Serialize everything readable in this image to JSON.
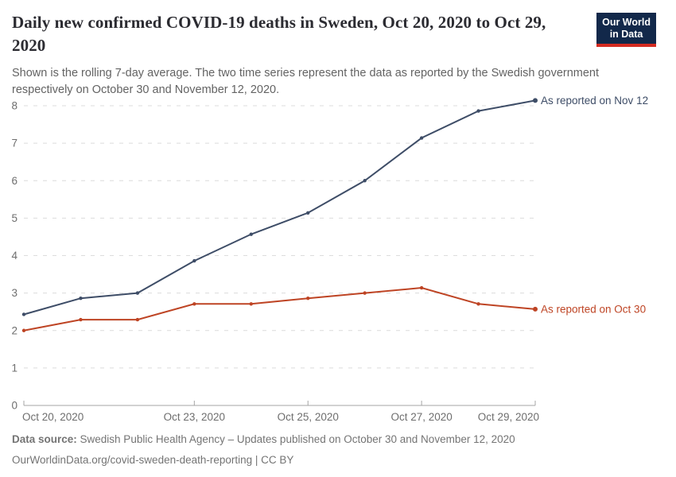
{
  "header": {
    "title": "Daily new confirmed COVID-19 deaths in Sweden, Oct 20, 2020 to Oct 29, 2020",
    "subtitle": "Shown is the rolling 7-day average. The two time series represent the data as reported by the Swedish government respectively on October 30 and November 12, 2020.",
    "logo": {
      "line1": "Our World",
      "line2": "in Data",
      "bg_color": "#12284A",
      "accent_color": "#D42B21"
    }
  },
  "chart_data": {
    "type": "line",
    "title": "Daily new confirmed COVID-19 deaths in Sweden, Oct 20, 2020 to Oct 29, 2020",
    "x": [
      "Oct 20, 2020",
      "Oct 21, 2020",
      "Oct 22, 2020",
      "Oct 23, 2020",
      "Oct 24, 2020",
      "Oct 25, 2020",
      "Oct 26, 2020",
      "Oct 27, 2020",
      "Oct 28, 2020",
      "Oct 29, 2020"
    ],
    "series": [
      {
        "name": "As reported on Nov 12",
        "color": "#3E4D67",
        "values": [
          2.43,
          2.86,
          3.0,
          3.86,
          4.57,
          5.14,
          6.0,
          7.14,
          7.86,
          8.14
        ]
      },
      {
        "name": "As reported on Oct 30",
        "color": "#BE4424",
        "values": [
          2.0,
          2.29,
          2.29,
          2.71,
          2.71,
          2.86,
          3.0,
          3.14,
          2.71,
          2.57
        ]
      }
    ],
    "x_ticks": [
      {
        "index": 0,
        "label": "Oct 20, 2020",
        "align": "start"
      },
      {
        "index": 3,
        "label": "Oct 23, 2020",
        "align": "middle"
      },
      {
        "index": 5,
        "label": "Oct 25, 2020",
        "align": "middle"
      },
      {
        "index": 7,
        "label": "Oct 27, 2020",
        "align": "middle"
      },
      {
        "index": 9,
        "label": "Oct 29, 2020",
        "align": "end"
      }
    ],
    "y_ticks": [
      0,
      1,
      2,
      3,
      4,
      5,
      6,
      7,
      8
    ],
    "ylim": [
      0,
      8.6
    ],
    "xlabel": "",
    "ylabel": "",
    "grid": "horizontal-dashed",
    "legend": "line-end-labels"
  },
  "footer": {
    "datasource_label": "Data source:",
    "datasource_text": " Swedish Public Health Agency – Updates published on October 30 and November 12, 2020",
    "link": "OurWorldinData.org/covid-sweden-death-reporting",
    "license": " | CC BY"
  }
}
